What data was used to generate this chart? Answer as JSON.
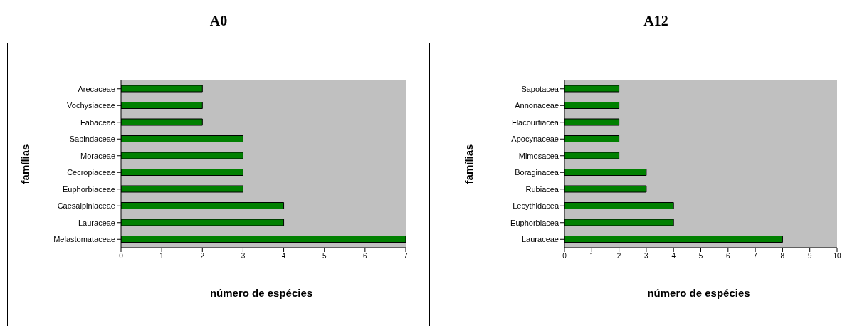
{
  "chart_data": [
    {
      "type": "bar",
      "orientation": "horizontal",
      "title": "A0",
      "xlabel": "número de espécies",
      "ylabel": "famílias",
      "categories": [
        "Arecaceae",
        "Vochysiaceae",
        "Fabaceae",
        "Sapindaceae",
        "Moraceae",
        "Cecropiaceae",
        "Euphorbiaceae",
        "Caesalpiniaceae",
        "Lauraceae",
        "Melastomataceae"
      ],
      "values": [
        2,
        2,
        2,
        3,
        3,
        3,
        3,
        4,
        4,
        7
      ],
      "color": "#008000",
      "xlim": [
        0,
        7
      ],
      "xticks": [
        0,
        1,
        2,
        3,
        4,
        5,
        6,
        7
      ]
    },
    {
      "type": "bar",
      "orientation": "horizontal",
      "title": "A12",
      "xlabel": "número de espécies",
      "ylabel": "famílias",
      "categories": [
        "Sapotacea",
        "Annonaceae",
        "Flacourtiacea",
        "Apocynaceae",
        "Mimosacea",
        "Boraginacea",
        "Rubiacea",
        "Lecythidacea",
        "Euphorbiacea",
        "Lauraceae"
      ],
      "values": [
        2,
        2,
        2,
        2,
        2,
        3,
        3,
        4,
        4,
        8
      ],
      "color": "#008000",
      "xlim": [
        0,
        10
      ],
      "xticks": [
        0,
        1,
        2,
        3,
        4,
        5,
        6,
        7,
        8,
        9,
        10
      ]
    }
  ]
}
